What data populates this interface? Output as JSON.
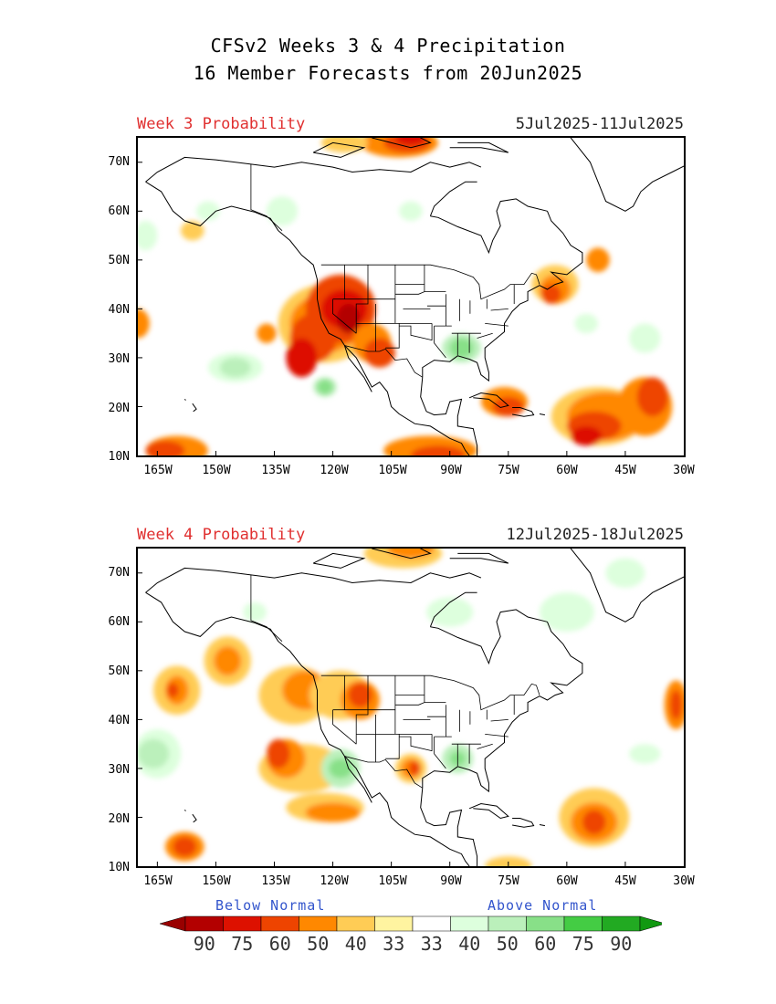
{
  "title": {
    "line1": "CFSv2 Weeks 3 & 4 Precipitation",
    "line2": "16 Member Forecasts from 20Jun2025"
  },
  "panels": [
    {
      "label": "Week 3 Probability",
      "dates": "5Jul2025-11Jul2025"
    },
    {
      "label": "Week 4 Probability",
      "dates": "12Jul2025-18Jul2025"
    }
  ],
  "axes": {
    "lat_labels": [
      "70N",
      "60N",
      "50N",
      "40N",
      "30N",
      "20N",
      "10N"
    ],
    "lon_labels": [
      "165W",
      "150W",
      "135W",
      "120W",
      "105W",
      "90W",
      "75W",
      "60W",
      "45W",
      "30W"
    ]
  },
  "legend": {
    "below_label": "Below Normal",
    "above_label": "Above Normal",
    "values": [
      "90",
      "75",
      "60",
      "50",
      "40",
      "33",
      "33",
      "40",
      "50",
      "60",
      "75",
      "90"
    ],
    "colors": [
      "#b30000",
      "#dd1100",
      "#ee4400",
      "#ff8800",
      "#ffcc55",
      "#fff4a0",
      "#ffffff",
      "#ddffdd",
      "#bbf0bb",
      "#88e088",
      "#44cc44",
      "#22aa22"
    ],
    "arrow_left_color": "#990000",
    "arrow_right_color": "#119911"
  },
  "colors": {
    "panel_label": "#e03030",
    "legend_heading": "#3355cc"
  }
}
